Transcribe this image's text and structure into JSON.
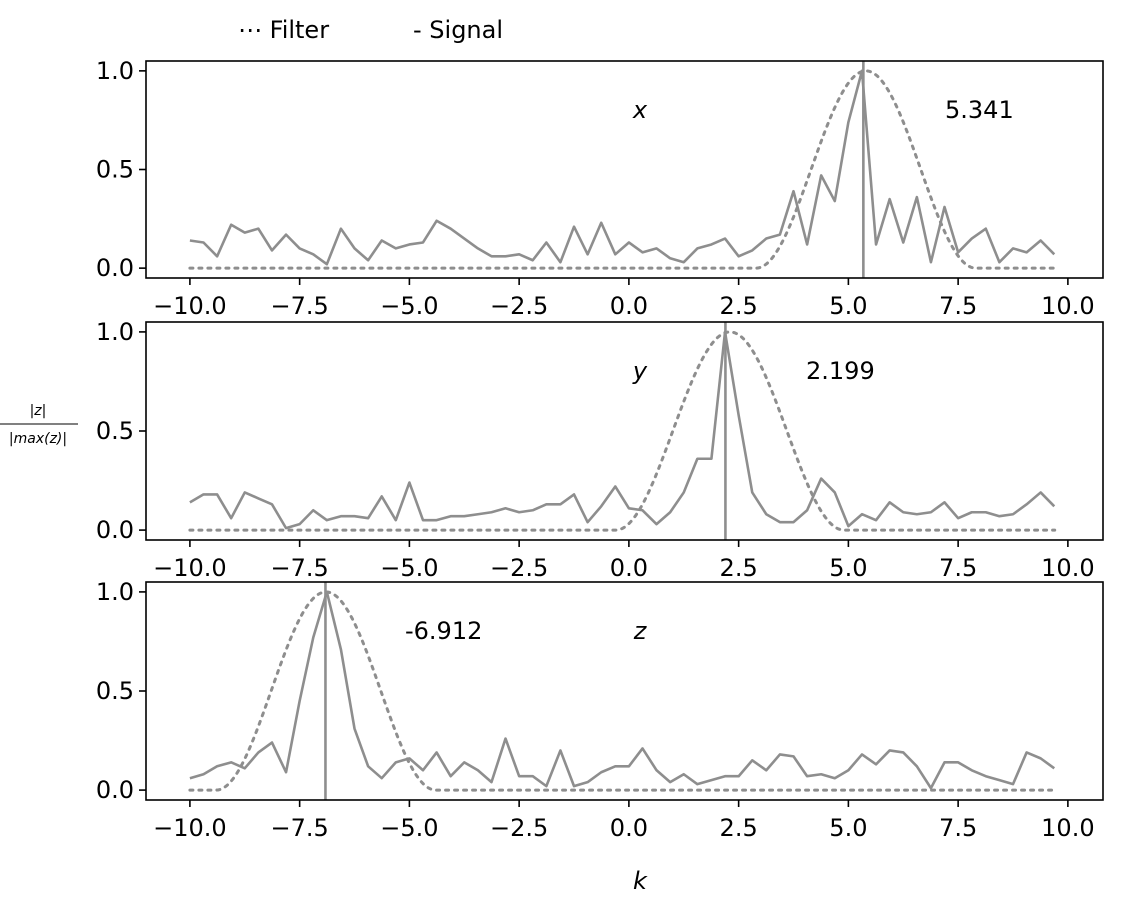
{
  "legend": {
    "filter_label": "⋯ Filter",
    "signal_label": "- Signal",
    "placement": "top-left"
  },
  "ylabel_num": "|z|",
  "ylabel_den": "|max(z)|",
  "xlabel": "k",
  "colors": {
    "line": "#8e8e8e",
    "axis": "#000000",
    "background": "#ffffff"
  },
  "chart_data": [
    {
      "type": "line",
      "panel_label": "x",
      "peak_label": "5.341",
      "peak_k": 5.341,
      "xlim": [
        -11,
        10.8
      ],
      "ylim": [
        -0.05,
        1.05
      ],
      "xticks": [
        -10,
        -7.5,
        -5,
        -2.5,
        0,
        2.5,
        5,
        7.5,
        10
      ],
      "xtick_labels": [
        "−10.0",
        "−7.5",
        "−5.0",
        "−2.5",
        "0.0",
        "2.5",
        "5.0",
        "7.5",
        "10.0"
      ],
      "yticks": [
        0,
        0.5,
        1
      ],
      "ytick_labels": [
        "0.0",
        "0.5",
        "1.0"
      ],
      "filter_window": [
        2.9,
        7.9
      ],
      "k": [
        -10.0,
        -9.69,
        -9.38,
        -9.06,
        -8.75,
        -8.44,
        -8.13,
        -7.81,
        -7.5,
        -7.19,
        -6.88,
        -6.56,
        -6.25,
        -5.94,
        -5.63,
        -5.31,
        -5.0,
        -4.69,
        -4.38,
        -4.06,
        -3.75,
        -3.44,
        -3.13,
        -2.81,
        -2.5,
        -2.19,
        -1.88,
        -1.56,
        -1.25,
        -0.94,
        -0.63,
        -0.31,
        0.0,
        0.31,
        0.63,
        0.94,
        1.25,
        1.56,
        1.88,
        2.19,
        2.5,
        2.81,
        3.13,
        3.44,
        3.75,
        4.06,
        4.38,
        4.69,
        5.0,
        5.31,
        5.63,
        5.94,
        6.25,
        6.56,
        6.88,
        7.19,
        7.5,
        7.81,
        8.13,
        8.44,
        8.75,
        9.06,
        9.38,
        9.69
      ],
      "signal": [
        0.14,
        0.13,
        0.06,
        0.22,
        0.18,
        0.2,
        0.09,
        0.17,
        0.1,
        0.07,
        0.02,
        0.2,
        0.1,
        0.04,
        0.14,
        0.1,
        0.12,
        0.13,
        0.24,
        0.2,
        0.15,
        0.1,
        0.06,
        0.06,
        0.07,
        0.04,
        0.13,
        0.03,
        0.21,
        0.07,
        0.23,
        0.07,
        0.13,
        0.08,
        0.1,
        0.05,
        0.03,
        0.1,
        0.12,
        0.15,
        0.06,
        0.09,
        0.15,
        0.17,
        0.39,
        0.12,
        0.47,
        0.34,
        0.74,
        1.0,
        0.12,
        0.35,
        0.13,
        0.36,
        0.03,
        0.31,
        0.08,
        0.15,
        0.2,
        0.03,
        0.1,
        0.08,
        0.14,
        0.07
      ]
    },
    {
      "type": "line",
      "panel_label": "y",
      "peak_label": "2.199",
      "peak_k": 2.199,
      "xlim": [
        -11,
        10.8
      ],
      "ylim": [
        -0.05,
        1.05
      ],
      "xticks": [
        -10,
        -7.5,
        -5,
        -2.5,
        0,
        2.5,
        5,
        7.5,
        10
      ],
      "xtick_labels": [
        "−10.0",
        "−7.5",
        "−5.0",
        "−2.5",
        "0.0",
        "2.5",
        "5.0",
        "7.5",
        "10.0"
      ],
      "yticks": [
        0,
        0.5,
        1
      ],
      "ytick_labels": [
        "0.0",
        "0.5",
        "1.0"
      ],
      "filter_window": [
        -0.3,
        4.9
      ],
      "k": [
        -10.0,
        -9.69,
        -9.38,
        -9.06,
        -8.75,
        -8.44,
        -8.13,
        -7.81,
        -7.5,
        -7.19,
        -6.88,
        -6.56,
        -6.25,
        -5.94,
        -5.63,
        -5.31,
        -5.0,
        -4.69,
        -4.38,
        -4.06,
        -3.75,
        -3.44,
        -3.13,
        -2.81,
        -2.5,
        -2.19,
        -1.88,
        -1.56,
        -1.25,
        -0.94,
        -0.63,
        -0.31,
        0.0,
        0.31,
        0.63,
        0.94,
        1.25,
        1.56,
        1.88,
        2.19,
        2.5,
        2.81,
        3.13,
        3.44,
        3.75,
        4.06,
        4.38,
        4.69,
        5.0,
        5.31,
        5.63,
        5.94,
        6.25,
        6.56,
        6.88,
        7.19,
        7.5,
        7.81,
        8.13,
        8.44,
        8.75,
        9.06,
        9.38,
        9.69
      ],
      "signal": [
        0.14,
        0.18,
        0.18,
        0.06,
        0.19,
        0.16,
        0.13,
        0.01,
        0.03,
        0.1,
        0.05,
        0.07,
        0.07,
        0.06,
        0.17,
        0.05,
        0.24,
        0.05,
        0.05,
        0.07,
        0.07,
        0.08,
        0.09,
        0.11,
        0.09,
        0.1,
        0.13,
        0.13,
        0.18,
        0.04,
        0.12,
        0.22,
        0.11,
        0.1,
        0.03,
        0.09,
        0.19,
        0.36,
        0.36,
        1.0,
        0.58,
        0.19,
        0.08,
        0.04,
        0.04,
        0.1,
        0.26,
        0.19,
        0.02,
        0.08,
        0.05,
        0.14,
        0.09,
        0.08,
        0.09,
        0.14,
        0.06,
        0.09,
        0.09,
        0.07,
        0.08,
        0.13,
        0.19,
        0.12
      ]
    },
    {
      "type": "line",
      "panel_label": "z",
      "peak_label": "-6.912",
      "peak_k": -6.912,
      "xlim": [
        -11,
        10.8
      ],
      "ylim": [
        -0.05,
        1.05
      ],
      "xticks": [
        -10,
        -7.5,
        -5,
        -2.5,
        0,
        2.5,
        5,
        7.5,
        10
      ],
      "xtick_labels": [
        "−10.0",
        "−7.5",
        "−5.0",
        "−2.5",
        "0.0",
        "2.5",
        "5.0",
        "7.5",
        "10.0"
      ],
      "yticks": [
        0,
        0.5,
        1
      ],
      "ytick_labels": [
        "0.0",
        "0.5",
        "1.0"
      ],
      "filter_window": [
        -9.4,
        -4.4
      ],
      "k": [
        -10.0,
        -9.69,
        -9.38,
        -9.06,
        -8.75,
        -8.44,
        -8.13,
        -7.81,
        -7.5,
        -7.19,
        -6.88,
        -6.56,
        -6.25,
        -5.94,
        -5.63,
        -5.31,
        -5.0,
        -4.69,
        -4.38,
        -4.06,
        -3.75,
        -3.44,
        -3.13,
        -2.81,
        -2.5,
        -2.19,
        -1.88,
        -1.56,
        -1.25,
        -0.94,
        -0.63,
        -0.31,
        0.0,
        0.31,
        0.63,
        0.94,
        1.25,
        1.56,
        1.88,
        2.19,
        2.5,
        2.81,
        3.13,
        3.44,
        3.75,
        4.06,
        4.38,
        4.69,
        5.0,
        5.31,
        5.63,
        5.94,
        6.25,
        6.56,
        6.88,
        7.19,
        7.5,
        7.81,
        8.13,
        8.44,
        8.75,
        9.06,
        9.38,
        9.69
      ],
      "signal": [
        0.06,
        0.08,
        0.12,
        0.14,
        0.11,
        0.19,
        0.24,
        0.09,
        0.45,
        0.77,
        1.0,
        0.71,
        0.31,
        0.12,
        0.06,
        0.14,
        0.16,
        0.1,
        0.19,
        0.07,
        0.14,
        0.1,
        0.04,
        0.26,
        0.07,
        0.07,
        0.02,
        0.2,
        0.02,
        0.04,
        0.09,
        0.12,
        0.12,
        0.21,
        0.1,
        0.04,
        0.08,
        0.03,
        0.05,
        0.07,
        0.07,
        0.15,
        0.1,
        0.18,
        0.17,
        0.07,
        0.08,
        0.06,
        0.1,
        0.18,
        0.13,
        0.2,
        0.19,
        0.12,
        0.01,
        0.14,
        0.14,
        0.1,
        0.07,
        0.05,
        0.03,
        0.19,
        0.16,
        0.11
      ]
    }
  ]
}
